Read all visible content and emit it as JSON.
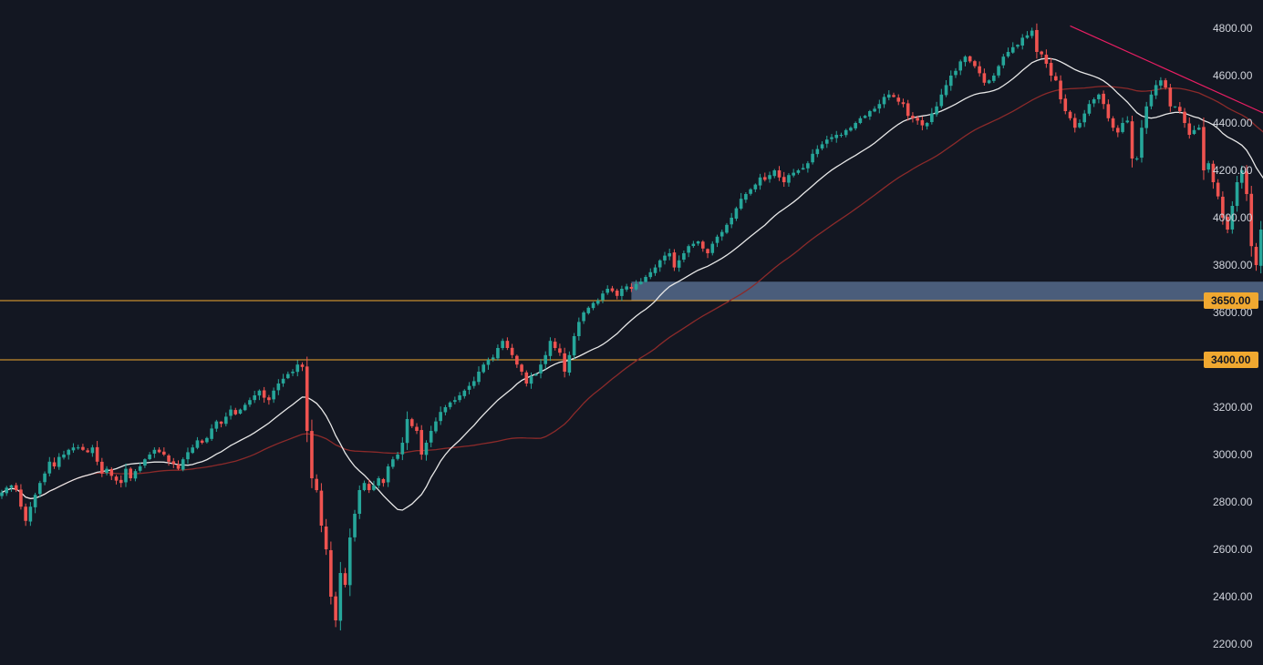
{
  "chart_data": {
    "type": "candlestick",
    "title": "",
    "xlabel": "",
    "ylabel": "",
    "y_axis_position": "right",
    "ylim": [
      2160,
      4840
    ],
    "y_ticks": [
      "4800.00",
      "4600.00",
      "4400.00",
      "4200.00",
      "4000.00",
      "3800.00",
      "3600.00",
      "3400.00",
      "3200.00",
      "3000.00",
      "2800.00",
      "2600.00",
      "2400.00",
      "2200.00"
    ],
    "colors": {
      "background": "#131722",
      "up": "#26a69a",
      "down": "#ef5350",
      "ma_fast": "#e8e8e8",
      "ma_slow": "#8b2a2a",
      "level_line": "#f0a830",
      "trendline": "#e91e63",
      "zone": "#5d7599",
      "tick_text": "#d1d4dc"
    },
    "levels": [
      {
        "value": 3650,
        "label": "3650.00"
      },
      {
        "value": 3400,
        "label": "3400.00"
      }
    ],
    "zone": {
      "from_index": 132,
      "to_index": 289,
      "low": 3650,
      "high": 3730
    },
    "trendline": {
      "from": {
        "index": 224,
        "value": 4810
      },
      "to": {
        "index": 300,
        "value": 4120
      }
    },
    "closes": [
      2840,
      2860,
      2870,
      2850,
      2780,
      2720,
      2780,
      2830,
      2880,
      2920,
      2970,
      2950,
      2990,
      3000,
      3020,
      3030,
      3030,
      3020,
      3010,
      3030,
      2970,
      2920,
      2940,
      2910,
      2890,
      2880,
      2940,
      2900,
      2930,
      2950,
      2980,
      3000,
      3020,
      3010,
      3000,
      2970,
      2960,
      2940,
      2980,
      3010,
      3030,
      3060,
      3050,
      3070,
      3110,
      3140,
      3130,
      3160,
      3190,
      3170,
      3190,
      3210,
      3230,
      3250,
      3270,
      3240,
      3230,
      3270,
      3300,
      3320,
      3340,
      3350,
      3380,
      3370,
      3100,
      2900,
      2850,
      2700,
      2600,
      2400,
      2300,
      2500,
      2450,
      2650,
      2750,
      2850,
      2880,
      2850,
      2870,
      2900,
      2880,
      2950,
      2980,
      3000,
      3050,
      3150,
      3120,
      3100,
      3000,
      3050,
      3100,
      3140,
      3180,
      3200,
      3220,
      3230,
      3250,
      3270,
      3290,
      3310,
      3350,
      3380,
      3400,
      3410,
      3450,
      3480,
      3450,
      3420,
      3380,
      3350,
      3300,
      3330,
      3340,
      3380,
      3420,
      3480,
      3450,
      3430,
      3350,
      3420,
      3500,
      3560,
      3600,
      3620,
      3640,
      3650,
      3680,
      3700,
      3690,
      3670,
      3700,
      3710,
      3700,
      3720,
      3730,
      3750,
      3770,
      3790,
      3820,
      3840,
      3850,
      3790,
      3820,
      3850,
      3880,
      3890,
      3900,
      3870,
      3850,
      3890,
      3920,
      3940,
      3970,
      4000,
      4040,
      4080,
      4100,
      4120,
      4140,
      4170,
      4160,
      4180,
      4200,
      4170,
      4150,
      4180,
      4190,
      4200,
      4210,
      4230,
      4270,
      4290,
      4310,
      4330,
      4340,
      4350,
      4350,
      4370,
      4380,
      4400,
      4420,
      4430,
      4450,
      4460,
      4480,
      4510,
      4520,
      4510,
      4490,
      4480,
      4430,
      4420,
      4410,
      4390,
      4400,
      4440,
      4470,
      4520,
      4560,
      4600,
      4620,
      4660,
      4680,
      4660,
      4640,
      4610,
      4570,
      4580,
      4600,
      4640,
      4680,
      4700,
      4720,
      4730,
      4760,
      4770,
      4790,
      4700,
      4690,
      4650,
      4600,
      4580,
      4500,
      4450,
      4420,
      4380,
      4400,
      4440,
      4480,
      4500,
      4520,
      4480,
      4420,
      4380,
      4360,
      4400,
      4410,
      4250,
      4250,
      4380,
      4470,
      4520,
      4560,
      4580,
      4550,
      4470,
      4470,
      4450,
      4400,
      4350,
      4370,
      4380,
      4200,
      4230,
      4150,
      4090,
      4000,
      3950,
      4050,
      4150,
      4200,
      4100,
      3880,
      3800,
      3950,
      3880,
      3720,
      3750,
      3850,
      3950,
      3900,
      3820,
      3860,
      3880,
      3920,
      4050,
      4130,
      4150,
      4200,
      4250,
      4300,
      4250,
      4150,
      4090,
      4050,
      4070,
      4010,
      4020,
      3900,
      3960,
      3850,
      3720,
      3620
    ]
  }
}
